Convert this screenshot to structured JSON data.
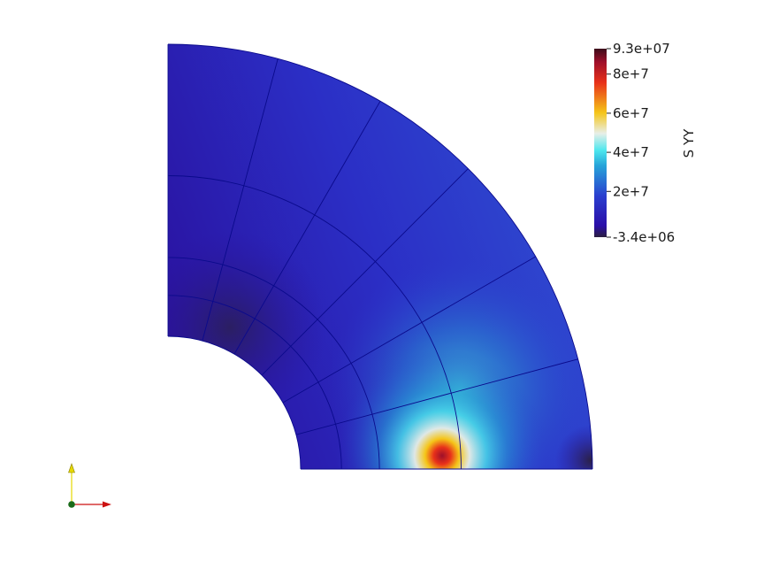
{
  "scene": {
    "background_color": "#ffffff",
    "field_name": "S YY",
    "mesh_line_color": "#0a0a8c"
  },
  "colorbar": {
    "title": "S YY",
    "range": [
      -3400000,
      93000000
    ],
    "labels": [
      {
        "text": "9.3e+07",
        "value": 93000000
      },
      {
        "text": "8e+7",
        "value": 80000000
      },
      {
        "text": "6e+7",
        "value": 60000000
      },
      {
        "text": "4e+7",
        "value": 40000000
      },
      {
        "text": "2e+7",
        "value": 20000000
      },
      {
        "text": "-3.4e+06",
        "value": -3400000
      }
    ],
    "colormap": [
      {
        "t": 0.0,
        "color": "#2b1f3f"
      },
      {
        "t": 0.06,
        "color": "#2a0ea8"
      },
      {
        "t": 0.22,
        "color": "#2a3fcf"
      },
      {
        "t": 0.38,
        "color": "#26a4d9"
      },
      {
        "t": 0.46,
        "color": "#4de7ee"
      },
      {
        "t": 0.55,
        "color": "#e8efe8"
      },
      {
        "t": 0.66,
        "color": "#f5c518"
      },
      {
        "t": 0.82,
        "color": "#e8311a"
      },
      {
        "t": 0.93,
        "color": "#9e0f2a"
      },
      {
        "t": 1.0,
        "color": "#3b0c1a"
      }
    ]
  },
  "orientation_axes": {
    "x_color": "#cc1111",
    "y_color": "#e6d800",
    "z_color": "#1a6b1a"
  }
}
